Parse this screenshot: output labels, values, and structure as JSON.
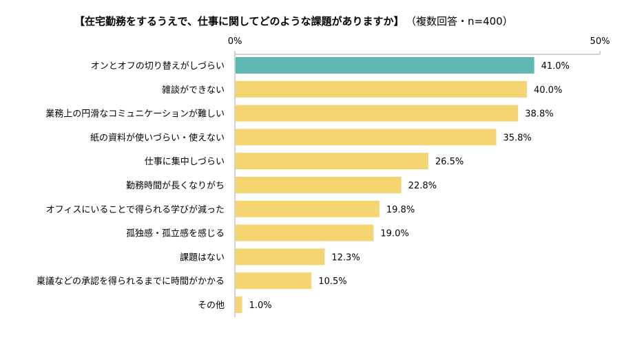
{
  "chart_data": {
    "type": "bar",
    "orientation": "horizontal",
    "title": "【在宅勤務をするうえで、仕事に関してどのような課題がありますか】",
    "subtitle": "（複数回答・n=400）",
    "xlim": [
      0,
      50
    ],
    "ticks": [
      "0%",
      "50%"
    ],
    "tick_values": [
      0,
      50
    ],
    "categories": [
      "オンとオフの切り替えがしづらい",
      "雑談ができない",
      "業務上の円滑なコミュニケーションが難しい",
      "紙の資料が使いづらい・使えない",
      "仕事に集中しづらい",
      "勤務時間が長くなりがち",
      "オフィスにいることで得られる学びが減った",
      "孤独感・孤立感を感じる",
      "課題はない",
      "稟議などの承認を得られるまでに時間がかかる",
      "その他"
    ],
    "values": [
      41.0,
      40.0,
      38.8,
      35.8,
      26.5,
      22.8,
      19.8,
      19.0,
      12.3,
      10.5,
      1.0
    ],
    "value_labels": [
      "41.0%",
      "40.0%",
      "38.8%",
      "35.8%",
      "26.5%",
      "22.8%",
      "19.8%",
      "19.0%",
      "12.3%",
      "10.5%",
      "1.0%"
    ],
    "highlight_index": 0,
    "colors": {
      "highlight": "#5fb8b2",
      "default": "#f5d472",
      "axis": "#a6a6a6"
    },
    "grid": false
  }
}
